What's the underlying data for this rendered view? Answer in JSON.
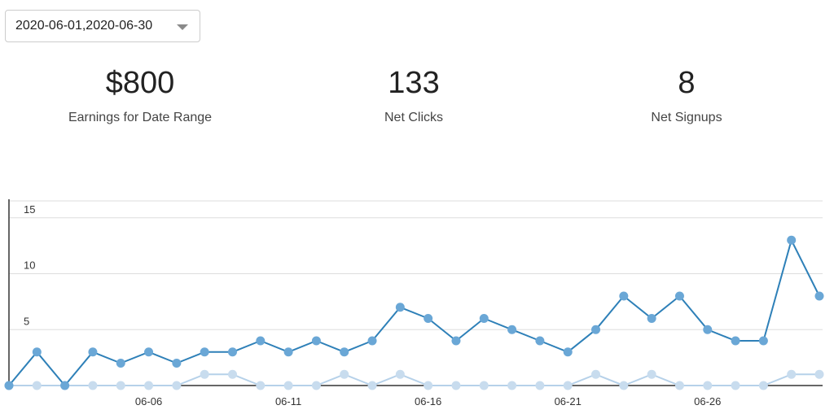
{
  "date_range": {
    "value": "2020-06-01,2020-06-30",
    "icon": "chevron-down-icon"
  },
  "stats": {
    "earnings": {
      "value": "$800",
      "label": "Earnings for Date Range"
    },
    "clicks": {
      "value": "133",
      "label": "Net Clicks"
    },
    "signups": {
      "value": "8",
      "label": "Net Signups"
    }
  },
  "colors": {
    "clicks_line": "#2e80b8",
    "clicks_point": "#6aa7d6",
    "signups_line": "#b6d1e9",
    "signups_point": "#c8dcee",
    "grid": "#dddddd",
    "axis": "#333333"
  },
  "chart_data": {
    "type": "line",
    "x": [
      "06-01",
      "06-02",
      "06-03",
      "06-04",
      "06-05",
      "06-06",
      "06-07",
      "06-08",
      "06-09",
      "06-10",
      "06-11",
      "06-12",
      "06-13",
      "06-14",
      "06-15",
      "06-16",
      "06-17",
      "06-18",
      "06-19",
      "06-20",
      "06-21",
      "06-22",
      "06-23",
      "06-24",
      "06-25",
      "06-26",
      "06-27",
      "06-28",
      "06-29",
      "06-30"
    ],
    "x_tick_labels": [
      "06-06",
      "06-11",
      "06-16",
      "06-21",
      "06-26"
    ],
    "y_tick_labels": [
      "5",
      "10",
      "15"
    ],
    "ylim": [
      0,
      16
    ],
    "grid": true,
    "series": [
      {
        "values": [
          0,
          3,
          0,
          3,
          2,
          3,
          2,
          3,
          3,
          4,
          3,
          4,
          3,
          4,
          7,
          6,
          4,
          6,
          5,
          4,
          3,
          5,
          8,
          6,
          8,
          5,
          4,
          4,
          13,
          8
        ]
      },
      {
        "values": [
          0,
          0,
          0,
          0,
          0,
          0,
          0,
          1,
          1,
          0,
          0,
          0,
          1,
          0,
          1,
          0,
          0,
          0,
          0,
          0,
          0,
          1,
          0,
          1,
          0,
          0,
          0,
          0,
          1,
          1
        ]
      }
    ]
  }
}
